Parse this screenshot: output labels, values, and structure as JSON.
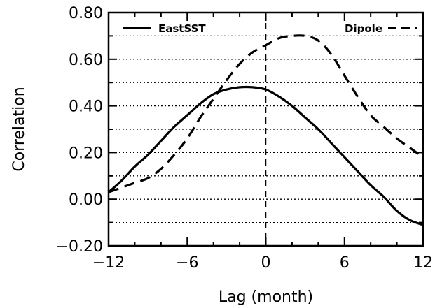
{
  "chart_data": {
    "type": "line",
    "xlabel": "Lag (month)",
    "ylabel": "Correlation",
    "xlim": [
      -12,
      12
    ],
    "ylim": [
      -0.2,
      0.8
    ],
    "xticks": [
      -12,
      -6,
      0,
      6,
      12
    ],
    "xtick_labels": [
      "−12",
      "−6",
      "0",
      "6",
      "12"
    ],
    "yticks": [
      -0.2,
      0.0,
      0.2,
      0.4,
      0.6,
      0.8
    ],
    "ytick_labels": [
      "−0.20",
      "0.00",
      "0.20",
      "0.40",
      "0.60",
      "0.80"
    ],
    "hgrid_dotted": [
      -0.1,
      0.0,
      0.1,
      0.2,
      0.3,
      0.4,
      0.5,
      0.6,
      0.7
    ],
    "zero_lag_line": 0,
    "legend": "top",
    "series": [
      {
        "name": "EastSST",
        "style": "solid",
        "x": [
          -12,
          -11,
          -10,
          -9,
          -8,
          -7,
          -6,
          -5,
          -4,
          -3,
          -2,
          -1,
          0,
          1,
          2,
          3,
          4,
          5,
          6,
          7,
          8,
          9,
          10,
          11,
          12
        ],
        "y": [
          0.03,
          0.08,
          0.14,
          0.19,
          0.25,
          0.31,
          0.36,
          0.41,
          0.45,
          0.47,
          0.48,
          0.48,
          0.47,
          0.44,
          0.4,
          0.35,
          0.3,
          0.24,
          0.18,
          0.12,
          0.06,
          0.01,
          -0.05,
          -0.09,
          -0.11
        ]
      },
      {
        "name": "Dipole",
        "style": "dashed",
        "x": [
          -12,
          -11,
          -10,
          -9,
          -8,
          -7,
          -6,
          -5,
          -4,
          -3,
          -2,
          -1,
          0,
          1,
          2,
          3,
          4,
          5,
          6,
          7,
          8,
          9,
          10,
          11,
          12
        ],
        "y": [
          0.03,
          0.05,
          0.07,
          0.09,
          0.13,
          0.19,
          0.26,
          0.35,
          0.43,
          0.51,
          0.58,
          0.63,
          0.66,
          0.69,
          0.7,
          0.7,
          0.68,
          0.62,
          0.53,
          0.44,
          0.36,
          0.31,
          0.26,
          0.22,
          0.18
        ]
      }
    ]
  }
}
